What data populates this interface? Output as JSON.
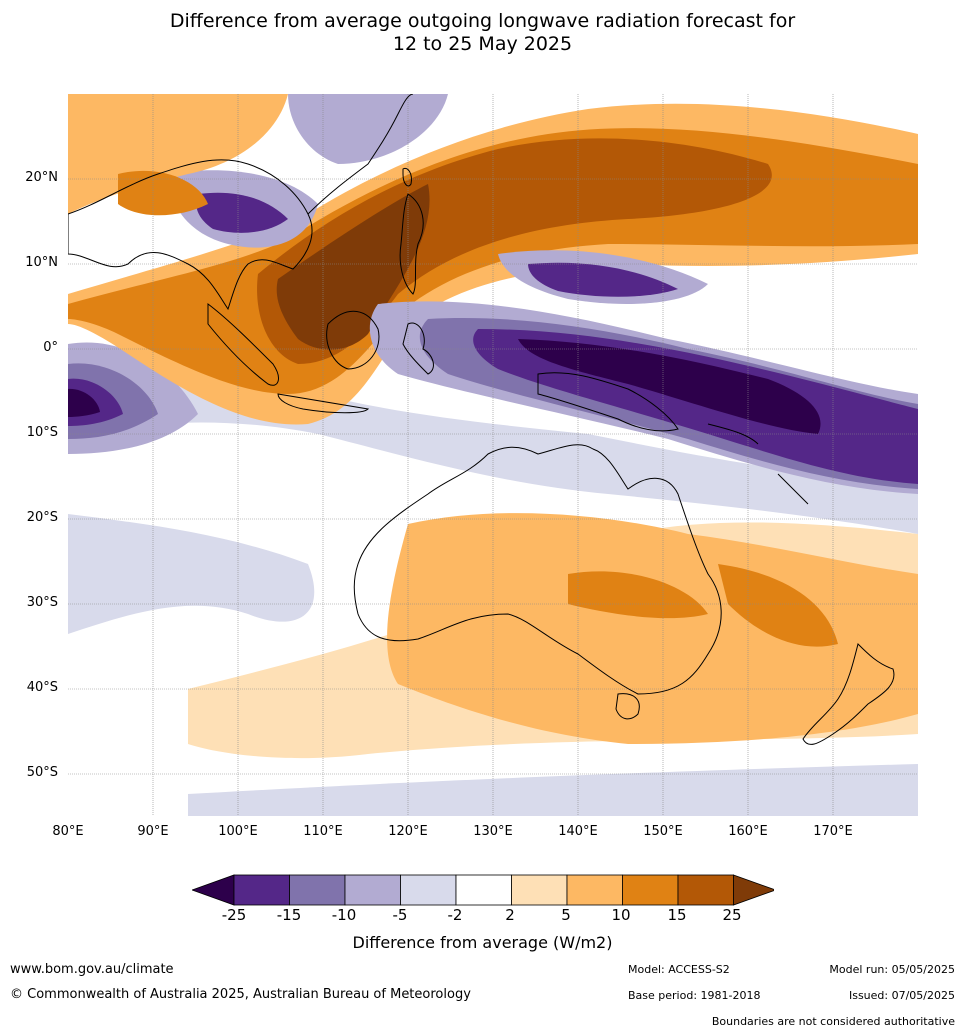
{
  "title": {
    "line1": "Difference from average outgoing longwave radiation forecast for",
    "line2": "12 to 25 May 2025"
  },
  "axes": {
    "lat_labels": [
      "20°N",
      "10°N",
      "0°",
      "10°S",
      "20°S",
      "30°S",
      "40°S",
      "50°S"
    ],
    "lon_labels": [
      "80°E",
      "90°E",
      "100°E",
      "110°E",
      "120°E",
      "130°E",
      "140°E",
      "150°E",
      "160°E",
      "170°E"
    ]
  },
  "colorbar": {
    "ticks": [
      "-25",
      "-15",
      "-10",
      "-5",
      "-2",
      "2",
      "5",
      "10",
      "15",
      "25"
    ],
    "colors": [
      "#2d004b",
      "#542788",
      "#8073ac",
      "#b2abd2",
      "#d8daeb",
      "#ffffff",
      "#fee0b6",
      "#fdb863",
      "#e08214",
      "#b35806",
      "#7f3b08"
    ],
    "label": "Difference from average (W/m2)"
  },
  "footer": {
    "website": "www.bom.gov.au/climate",
    "copyright": "© Commonwealth of Australia 2025, Australian Bureau of Meteorology",
    "model": "Model: ACCESS-S2",
    "base_period": "Base period: 1981-2018",
    "model_run": "Model run: 05/05/2025",
    "issued": "Issued: 07/05/2025",
    "disclaimer": "Boundaries are not considered authoritative"
  }
}
